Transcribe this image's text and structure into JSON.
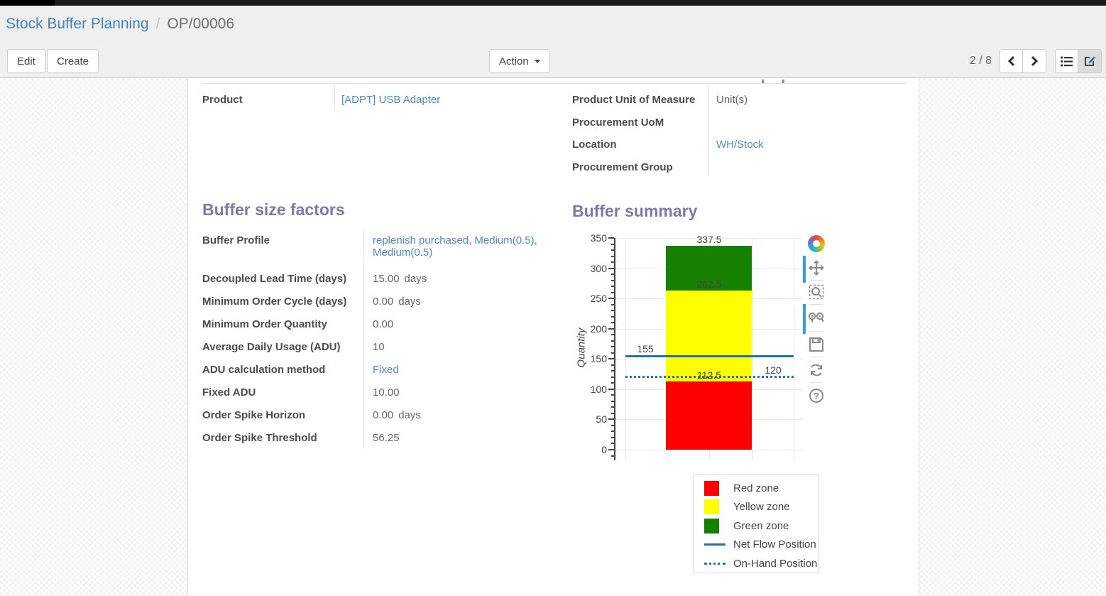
{
  "breadcrumb": {
    "section": "Stock Buffer Planning",
    "separator": "/",
    "record": "OP/00006"
  },
  "toolbar": {
    "edit_label": "Edit",
    "create_label": "Create",
    "action_label": "Action",
    "pager": "2 / 8",
    "icons": [
      "chevron-left",
      "chevron-right",
      "list-view",
      "form-view"
    ]
  },
  "form": {
    "product_group": {
      "rows": [
        {
          "label": "Product",
          "value": "[ADPT] USB Adapter"
        }
      ]
    },
    "info_group": {
      "rows": [
        {
          "label": "Product Unit of Measure",
          "value": "Unit(s)"
        },
        {
          "label": "Procurement UoM",
          "value": ""
        },
        {
          "label": "Location",
          "value": "WH/Stock"
        },
        {
          "label": "Procurement Group",
          "value": ""
        }
      ]
    },
    "factors": {
      "title": "Buffer size factors",
      "rows": [
        {
          "label": "Buffer Profile",
          "value": "replenish purchased, Medium(0.5), Medium(0.5)",
          "suffix": ""
        },
        {
          "label": "Decoupled Lead Time (days)",
          "value": "15.00",
          "suffix": "days"
        },
        {
          "label": "Minimum Order Cycle (days)",
          "value": "0.00",
          "suffix": "days"
        },
        {
          "label": "Minimum Order Quantity",
          "value": "0.00",
          "suffix": ""
        },
        {
          "label": "Average Daily Usage (ADU)",
          "value": "10",
          "suffix": ""
        },
        {
          "label": "ADU calculation method",
          "value": "Fixed",
          "suffix": ""
        },
        {
          "label": "Fixed ADU",
          "value": "10.00",
          "suffix": ""
        },
        {
          "label": "Order Spike Horizon",
          "value": "0.00",
          "suffix": "days"
        },
        {
          "label": "Order Spike Threshold",
          "value": "56.25",
          "suffix": ""
        }
      ]
    },
    "summary": {
      "title": "Buffer summary"
    }
  },
  "chart_data": {
    "type": "bar",
    "stacked": true,
    "title": "",
    "xlabel": "",
    "ylabel": "Quantity",
    "categories": [
      ""
    ],
    "series": [
      {
        "name": "Red zone",
        "color": "#ff0000",
        "values": [
          112.5
        ]
      },
      {
        "name": "Yellow zone",
        "color": "#ffff00",
        "values": [
          150
        ]
      },
      {
        "name": "Green zone",
        "color": "#168000",
        "values": [
          75
        ]
      }
    ],
    "cum_labels": [
      {
        "value": 112.5,
        "text": "112.5"
      },
      {
        "value": 262.5,
        "text": "262.5"
      },
      {
        "value": 337.5,
        "text": "337.5"
      }
    ],
    "hlines": [
      {
        "name": "Net Flow Position",
        "y": 155,
        "text": "155",
        "style": "solid",
        "color": "#2171b5",
        "label_side": "left"
      },
      {
        "name": "On-Hand Position",
        "y": 120,
        "text": "120",
        "style": "dotted",
        "color": "#2171b5",
        "label_side": "right"
      }
    ],
    "ylim": [
      0,
      350
    ],
    "yticks_major": [
      0,
      50,
      100,
      150,
      200,
      250,
      300,
      350
    ],
    "ytick_minor_step": 10,
    "grid": true,
    "legend_position": "bottom-right",
    "legend_items": [
      {
        "label": "Red zone",
        "type": "square",
        "color": "#ff0000"
      },
      {
        "label": "Yellow zone",
        "type": "square",
        "color": "#ffff00"
      },
      {
        "label": "Green zone",
        "type": "square",
        "color": "#168000"
      },
      {
        "label": "Net Flow Position",
        "type": "line",
        "color": "#2171b5"
      },
      {
        "label": "On-Hand Position",
        "type": "dotted",
        "color": "#2171b5"
      }
    ],
    "modebar_icons": [
      "plotly-logo",
      "pan",
      "box-zoom",
      "zoom-in-out",
      "save",
      "autoscale",
      "help"
    ]
  }
}
